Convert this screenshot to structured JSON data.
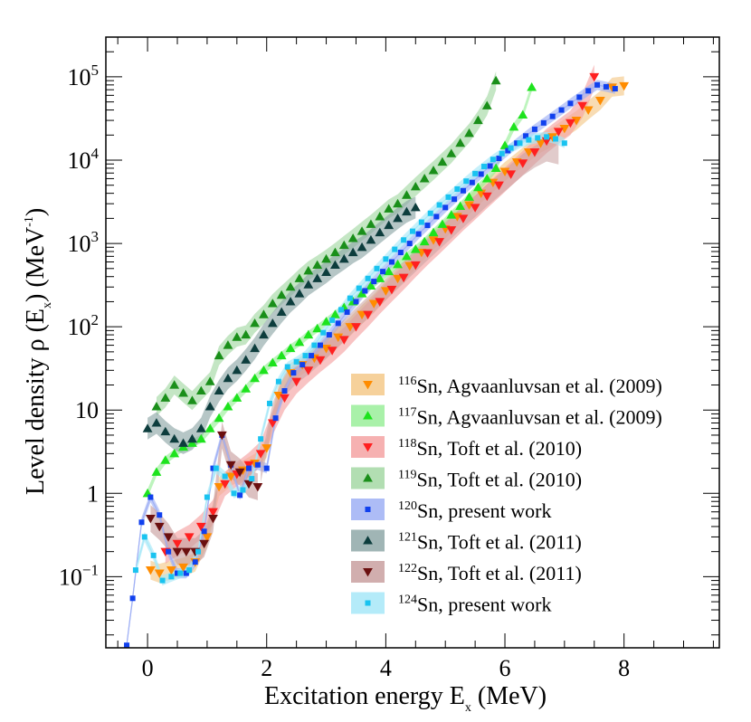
{
  "chart_data": {
    "type": "scatter",
    "title": "",
    "xlabel_main": "Excitation energy E",
    "xlabel_sub": "x",
    "xlabel_unit": " (MeV)",
    "ylabel_main": "Level density ρ (E",
    "ylabel_sub": "x",
    "ylabel_mid": ") (MeV",
    "ylabel_sup": "-1",
    "ylabel_end": ")",
    "xlim": [
      -0.7,
      9.6
    ],
    "ylim": [
      0.014,
      300000
    ],
    "yscale": "log",
    "x_ticks": [
      0,
      2,
      4,
      6,
      8
    ],
    "x_tick_labels": [
      "0",
      "2",
      "4",
      "6",
      "8"
    ],
    "y_ticks": [
      {
        "value": 0.1,
        "base": "10",
        "exp": "−1"
      },
      {
        "value": 1,
        "text": "1"
      },
      {
        "value": 10,
        "text": "10"
      },
      {
        "value": 100,
        "base": "10",
        "exp": "2"
      },
      {
        "value": 1000,
        "base": "10",
        "exp": "3"
      },
      {
        "value": 10000,
        "base": "10",
        "exp": "4"
      },
      {
        "value": 100000,
        "base": "10",
        "exp": "5"
      }
    ],
    "legend_position": "bottom-right",
    "series": [
      {
        "name": "116Sn",
        "mass": "116",
        "label": "Sn, Agvaanluvsan et al. (2009)",
        "marker": "triangle-down",
        "marker_color": "#ff8c00",
        "band_color": "#f5c98a",
        "x": [
          0.05,
          0.2,
          0.4,
          0.6,
          0.8,
          1.0,
          1.2,
          1.4,
          1.6,
          1.8,
          2.0,
          2.2,
          2.4,
          2.6,
          2.8,
          3.0,
          3.2,
          3.4,
          3.6,
          3.8,
          4.0,
          4.2,
          4.4,
          4.6,
          4.8,
          5.0,
          5.2,
          5.4,
          5.6,
          5.8,
          6.0,
          6.2,
          6.4,
          6.6,
          6.8,
          7.0,
          7.2,
          7.4,
          7.6,
          7.8,
          8.0
        ],
        "y": [
          0.12,
          0.11,
          0.12,
          0.13,
          0.15,
          0.3,
          1.2,
          1.6,
          1.9,
          2.3,
          3.5,
          15,
          28,
          35,
          42,
          55,
          75,
          100,
          140,
          190,
          270,
          380,
          540,
          780,
          1100,
          1500,
          2100,
          2900,
          4000,
          5400,
          7300,
          9500,
          12500,
          16000,
          19000,
          24000,
          30000,
          40000,
          52000,
          75000,
          78000
        ],
        "band_frac": 0.3,
        "line_x": [],
        "line_y": []
      },
      {
        "name": "117Sn",
        "mass": "117",
        "label": "Sn, Agvaanluvsan et al. (2009)",
        "marker": "triangle-up",
        "marker_color": "#1de31d",
        "band_color": "#9aee9a",
        "x": [
          0.0,
          0.15,
          0.3,
          0.45,
          0.6,
          0.75,
          0.9,
          1.05,
          1.2,
          1.35,
          1.5,
          1.65,
          1.8,
          1.95,
          2.1,
          2.25,
          2.4,
          2.55,
          2.7,
          2.85,
          3.0,
          3.15,
          3.3,
          3.45,
          3.6,
          3.75,
          3.9,
          4.05,
          4.2,
          4.35,
          4.5,
          4.65,
          4.8,
          4.95,
          5.1,
          5.25,
          5.4,
          5.55,
          5.7,
          5.85,
          6.0,
          6.15,
          6.3,
          6.45
        ],
        "y": [
          1.0,
          1.8,
          2.5,
          3.0,
          3.6,
          4.0,
          4.5,
          6,
          8,
          11,
          14,
          18,
          24,
          30,
          37,
          45,
          55,
          65,
          80,
          95,
          115,
          140,
          170,
          200,
          250,
          310,
          380,
          460,
          560,
          700,
          850,
          1050,
          1350,
          1700,
          2200,
          2800,
          3600,
          4700,
          6000,
          8000,
          15000,
          25000,
          35000,
          75000
        ],
        "band_frac": 0.12,
        "line_x": [],
        "line_y": []
      },
      {
        "name": "118Sn",
        "mass": "118",
        "label": "Sn, Toft et al. (2010)",
        "marker": "triangle-down",
        "marker_color": "#ff2020",
        "band_color": "#f5a3a3",
        "x": [
          0.3,
          0.5,
          0.7,
          0.9,
          1.1,
          1.3,
          1.5,
          1.7,
          1.9,
          2.1,
          2.3,
          2.5,
          2.7,
          2.9,
          3.1,
          3.3,
          3.5,
          3.7,
          3.9,
          4.1,
          4.3,
          4.5,
          4.7,
          4.9,
          5.1,
          5.3,
          5.5,
          5.7,
          5.9,
          6.1,
          6.3,
          6.5,
          6.7,
          6.9,
          7.1,
          7.3,
          7.5
        ],
        "y": [
          0.2,
          0.25,
          0.3,
          0.4,
          0.6,
          1.3,
          1.7,
          2.2,
          3,
          7,
          14,
          22,
          30,
          40,
          52,
          70,
          100,
          140,
          200,
          280,
          390,
          550,
          770,
          1050,
          1450,
          2000,
          2700,
          3700,
          5000,
          6800,
          9200,
          12500,
          17000,
          22000,
          28000,
          45000,
          100000
        ],
        "band_frac": 0.4,
        "line_x": [],
        "line_y": []
      },
      {
        "name": "119Sn",
        "mass": "119",
        "label": "Sn, Toft et al. (2010)",
        "marker": "triangle-up",
        "marker_color": "#1a8f1a",
        "band_color": "#a4d8a4",
        "x": [
          0.15,
          0.3,
          0.45,
          0.6,
          0.75,
          0.9,
          1.05,
          1.2,
          1.35,
          1.5,
          1.65,
          1.8,
          1.95,
          2.1,
          2.25,
          2.4,
          2.55,
          2.7,
          2.85,
          3.0,
          3.15,
          3.3,
          3.45,
          3.6,
          3.75,
          3.9,
          4.05,
          4.2,
          4.35,
          4.5,
          4.65,
          4.8,
          4.95,
          5.1,
          5.25,
          5.4,
          5.55,
          5.7,
          5.85
        ],
        "y": [
          11,
          14,
          20,
          16,
          13,
          17,
          22,
          45,
          60,
          75,
          80,
          110,
          140,
          190,
          240,
          300,
          380,
          470,
          550,
          650,
          780,
          950,
          1150,
          1400,
          1700,
          2100,
          2600,
          3000,
          3800,
          4800,
          6000,
          7500,
          9500,
          12000,
          16000,
          21000,
          30000,
          45000,
          90000
        ],
        "band_frac": 0.3,
        "line_x": [],
        "line_y": []
      },
      {
        "name": "120Sn",
        "mass": "120",
        "label": "Sn, present work",
        "marker": "square",
        "marker_color": "#1040ee",
        "band_color": "#9fb0f5",
        "x": [
          -0.35,
          -0.25,
          -0.1,
          0.05,
          0.2,
          0.35,
          0.5,
          0.65,
          0.8,
          0.95,
          1.1,
          1.25,
          1.4,
          1.55,
          1.7,
          1.85,
          2.0,
          2.15,
          2.3,
          2.45,
          2.6,
          2.75,
          2.9,
          3.05,
          3.2,
          3.35,
          3.5,
          3.65,
          3.8,
          3.95,
          4.1,
          4.25,
          4.4,
          4.55,
          4.7,
          4.85,
          5.0,
          5.15,
          5.3,
          5.45,
          5.6,
          5.75,
          5.9,
          6.05,
          6.2,
          6.35,
          6.5,
          6.65,
          6.8,
          6.95,
          7.1,
          7.25,
          7.4,
          7.55,
          7.7,
          7.85
        ],
        "y": [
          0.015,
          0.055,
          0.45,
          0.9,
          0.55,
          0.2,
          0.11,
          0.11,
          0.15,
          0.35,
          2.0,
          5.0,
          2.2,
          0.95,
          2.0,
          2.2,
          2.0,
          8,
          17,
          28,
          35,
          45,
          60,
          80,
          110,
          150,
          200,
          270,
          350,
          460,
          600,
          780,
          1000,
          1300,
          1650,
          2100,
          2700,
          3400,
          4300,
          5400,
          6800,
          8500,
          10500,
          13000,
          16000,
          19500,
          23500,
          28000,
          33500,
          40000,
          48000,
          57000,
          68000,
          80000,
          76000,
          72000
        ],
        "band_frac": 0.15,
        "line_x": [],
        "line_y": []
      },
      {
        "name": "121Sn",
        "mass": "121",
        "label": "Sn, Toft et al. (2011)",
        "marker": "triangle-up",
        "marker_color": "#0d3d3d",
        "band_color": "#8fa8a8",
        "x": [
          0.0,
          0.15,
          0.3,
          0.45,
          0.6,
          0.75,
          0.9,
          1.05,
          1.2,
          1.35,
          1.5,
          1.65,
          1.8,
          1.95,
          2.1,
          2.25,
          2.4,
          2.55,
          2.7,
          2.85,
          3.0,
          3.15,
          3.3,
          3.45,
          3.6,
          3.75,
          3.9,
          4.05,
          4.2,
          4.35,
          4.5
        ],
        "y": [
          6,
          7,
          5.5,
          4.5,
          4.0,
          4.5,
          6,
          11,
          17,
          24,
          30,
          40,
          55,
          80,
          110,
          150,
          200,
          250,
          320,
          380,
          450,
          550,
          650,
          780,
          900,
          1100,
          1350,
          1650,
          2000,
          2400,
          2700
        ],
        "band_frac": 0.35,
        "line_x": [],
        "line_y": []
      },
      {
        "name": "122Sn",
        "mass": "122",
        "label": "Sn, Toft et al. (2011)",
        "marker": "triangle-down",
        "marker_color": "#6b0f0f",
        "band_color": "#c9a0a0",
        "x": [
          0.05,
          0.2,
          0.35,
          0.5,
          0.65,
          0.8,
          0.95,
          1.1,
          1.25,
          1.4,
          1.55,
          1.7,
          1.85
        ],
        "y": [
          0.5,
          0.4,
          0.3,
          0.2,
          0.2,
          0.2,
          0.25,
          0.5,
          5.0,
          2.2,
          1.8,
          1.3,
          1.2
        ],
        "band_frac": 0.45,
        "line_x": [
          1.9,
          2.1,
          2.3,
          2.5,
          2.7,
          2.9,
          3.1,
          3.3,
          3.5,
          3.7,
          3.9,
          4.1,
          4.3,
          4.5,
          4.7,
          4.9,
          5.1,
          5.3,
          5.5,
          5.7,
          5.9,
          6.1,
          6.3,
          6.5,
          6.7,
          6.9
        ],
        "line_y": [
          1.8,
          9,
          20,
          28,
          36,
          48,
          65,
          90,
          125,
          170,
          240,
          330,
          450,
          620,
          850,
          1150,
          1550,
          2100,
          2800,
          3800,
          5000,
          6600,
          8800,
          11000,
          13000,
          12000
        ]
      },
      {
        "name": "124Sn",
        "mass": "124",
        "label": "Sn, present work",
        "marker": "square",
        "marker_color": "#19c3f0",
        "band_color": "#a7e8f8",
        "x": [
          -0.2,
          -0.05,
          0.1,
          0.25,
          0.4,
          0.55,
          0.7,
          0.85,
          1.0,
          1.15,
          1.3,
          1.45,
          1.6,
          1.75,
          1.9,
          2.05,
          2.2,
          2.35,
          2.5,
          2.65,
          2.8,
          2.95,
          3.1,
          3.25,
          3.4,
          3.55,
          3.7,
          3.85,
          4.0,
          4.15,
          4.3,
          4.45,
          4.6,
          4.75,
          4.9,
          5.05,
          5.2,
          5.35,
          5.5,
          5.65,
          5.8,
          5.95,
          6.1,
          6.25,
          6.4,
          6.55,
          6.7,
          6.85,
          7.0
        ],
        "y": [
          0.12,
          0.3,
          0.18,
          0.09,
          0.1,
          0.11,
          0.12,
          0.2,
          0.9,
          2.0,
          1.6,
          1.0,
          1.1,
          1.5,
          4.5,
          12,
          22,
          33,
          38,
          45,
          60,
          85,
          120,
          160,
          220,
          290,
          380,
          500,
          650,
          850,
          1100,
          1400,
          1800,
          2300,
          2900,
          3600,
          4500,
          5600,
          6900,
          8400,
          10200,
          12000,
          14000,
          16000,
          17500,
          18500,
          19000,
          18000,
          16000
        ],
        "band_frac": 0.15,
        "line_x": [],
        "line_y": []
      }
    ]
  }
}
